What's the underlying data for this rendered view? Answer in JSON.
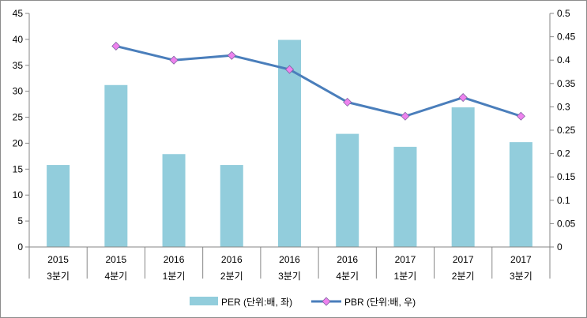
{
  "chart_data": {
    "type": "bar+line",
    "categories": [
      [
        "2015",
        "3분기"
      ],
      [
        "2015",
        "4분기"
      ],
      [
        "2016",
        "1분기"
      ],
      [
        "2016",
        "2분기"
      ],
      [
        "2016",
        "3분기"
      ],
      [
        "2016",
        "4분기"
      ],
      [
        "2017",
        "1분기"
      ],
      [
        "2017",
        "2분기"
      ],
      [
        "2017",
        "3분기"
      ]
    ],
    "series": [
      {
        "name": "PER (단위:배, 좌)",
        "type": "bar",
        "axis": "left",
        "color": "#92cddc",
        "values": [
          15.8,
          31.2,
          17.9,
          15.8,
          39.9,
          21.8,
          19.3,
          26.9,
          20.2
        ]
      },
      {
        "name": "PBR (단위:배, 우)",
        "type": "line",
        "axis": "right",
        "color": "#4a7ebb",
        "marker_color": "#ee82ee",
        "values": [
          null,
          0.43,
          0.4,
          0.41,
          0.38,
          0.31,
          0.28,
          0.32,
          0.28
        ]
      }
    ],
    "left_axis": {
      "min": 0,
      "max": 45,
      "step": 5,
      "ticks": [
        "0",
        "5",
        "10",
        "15",
        "20",
        "25",
        "30",
        "35",
        "40",
        "45"
      ]
    },
    "right_axis": {
      "min": 0,
      "max": 0.5,
      "step": 0.05,
      "ticks": [
        "0",
        "0.05",
        "0.1",
        "0.15",
        "0.2",
        "0.25",
        "0.3",
        "0.35",
        "0.4",
        "0.45",
        "0.5"
      ]
    },
    "grid": false,
    "legend_position": "bottom"
  }
}
